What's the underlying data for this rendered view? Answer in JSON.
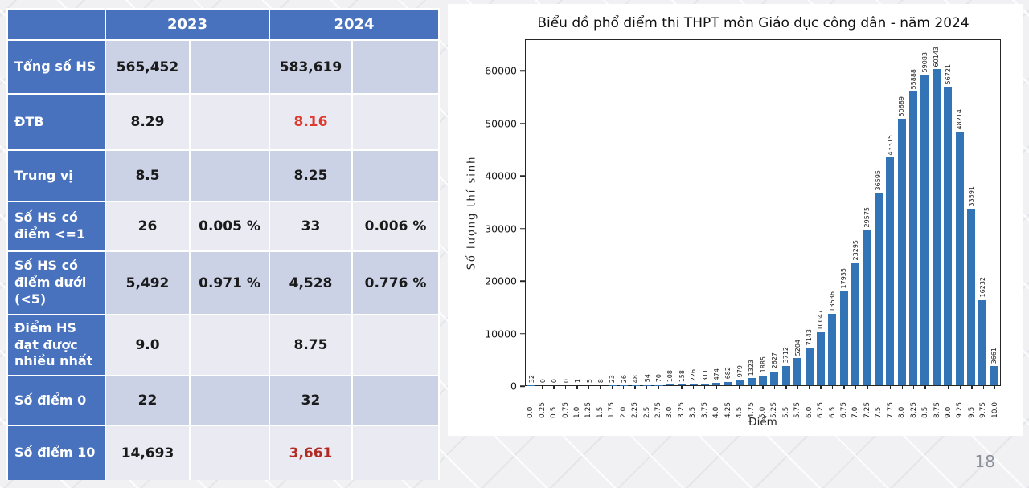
{
  "page": {
    "number": "18"
  },
  "table": {
    "col_headers": [
      "2023",
      "2024"
    ],
    "rows": [
      {
        "label": "Tổng số HS",
        "v1": "565,452",
        "p1": "",
        "v2": "583,619",
        "p2": ""
      },
      {
        "label": "ĐTB",
        "v1": "8.29",
        "p1": "",
        "v2": "8.16",
        "p2": "",
        "v2_color": "#DF3A2E"
      },
      {
        "label": "Trung vị",
        "v1": "8.5",
        "p1": "",
        "v2": "8.25",
        "p2": ""
      },
      {
        "label": "Số HS có điểm <=1",
        "v1": "26",
        "p1": "0.005 %",
        "v2": "33",
        "p2": "0.006 %"
      },
      {
        "label": "Số HS có điểm dưới (<5)",
        "v1": "5,492",
        "p1": "0.971 %",
        "v2": "4,528",
        "p2": "0.776 %"
      },
      {
        "label": "Điểm HS đạt được nhiều nhất",
        "v1": "9.0",
        "p1": "",
        "v2": "8.75",
        "p2": ""
      },
      {
        "label": "Số điểm 0",
        "v1": "22",
        "p1": "",
        "v2": "32",
        "p2": ""
      },
      {
        "label": "Số điểm 10",
        "v1": "14,693",
        "p1": "",
        "v2": "3,661",
        "p2": "",
        "v2_color": "#B22B22"
      }
    ]
  },
  "chart_data": {
    "type": "bar",
    "title": "Biểu đồ phổ điểm thi THPT môn Giáo dục công dân - năm 2024",
    "xlabel": "Điểm",
    "ylabel": "Số lượng thí sinh",
    "ylim": [
      0,
      66000
    ],
    "yticks": [
      0,
      10000,
      20000,
      30000,
      40000,
      50000,
      60000
    ],
    "bar_color": "#3274B5",
    "grid": false,
    "legend": "none",
    "categories": [
      "0.0",
      "0.25",
      "0.5",
      "0.75",
      "1.0",
      "1.25",
      "1.5",
      "1.75",
      "2.0",
      "2.25",
      "2.5",
      "2.75",
      "3.0",
      "3.25",
      "3.5",
      "3.75",
      "4.0",
      "4.25",
      "4.5",
      "4.75",
      "5.0",
      "5.25",
      "5.5",
      "5.75",
      "6.0",
      "6.25",
      "6.5",
      "6.75",
      "7.0",
      "7.25",
      "7.5",
      "7.75",
      "8.0",
      "8.25",
      "8.5",
      "8.75",
      "9.0",
      "9.25",
      "9.5",
      "9.75",
      "10.0"
    ],
    "values": [
      32,
      0,
      0,
      0,
      1,
      5,
      8,
      23,
      26,
      48,
      54,
      70,
      108,
      158,
      226,
      311,
      474,
      682,
      979,
      1323,
      1885,
      2627,
      3712,
      5204,
      7143,
      10047,
      13536,
      17935,
      23295,
      29575,
      36595,
      43315,
      50689,
      55888,
      59083,
      60143,
      56721,
      48214,
      33591,
      16232,
      3661
    ]
  }
}
